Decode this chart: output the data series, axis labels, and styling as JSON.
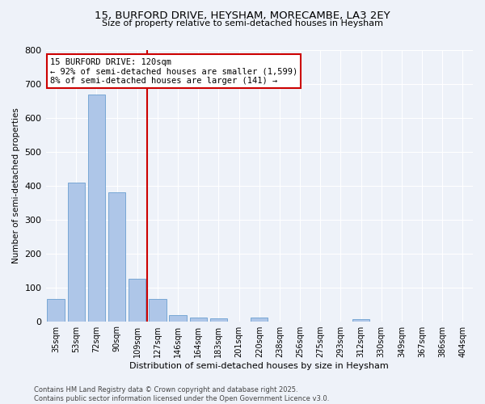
{
  "title_line1": "15, BURFORD DRIVE, HEYSHAM, MORECAMBE, LA3 2EY",
  "title_line2": "Size of property relative to semi-detached houses in Heysham",
  "xlabel": "Distribution of semi-detached houses by size in Heysham",
  "ylabel": "Number of semi-detached properties",
  "categories": [
    "35sqm",
    "53sqm",
    "72sqm",
    "90sqm",
    "109sqm",
    "127sqm",
    "146sqm",
    "164sqm",
    "183sqm",
    "201sqm",
    "220sqm",
    "238sqm",
    "256sqm",
    "275sqm",
    "293sqm",
    "312sqm",
    "330sqm",
    "349sqm",
    "367sqm",
    "386sqm",
    "404sqm"
  ],
  "values": [
    65,
    408,
    667,
    380,
    125,
    65,
    18,
    12,
    8,
    0,
    10,
    0,
    0,
    0,
    0,
    5,
    0,
    0,
    0,
    0,
    0
  ],
  "bar_color": "#aec6e8",
  "bar_edge_color": "#6a9fd0",
  "vline_color": "#cc0000",
  "vline_x": 4.5,
  "ylim": [
    0,
    800
  ],
  "yticks": [
    0,
    100,
    200,
    300,
    400,
    500,
    600,
    700,
    800
  ],
  "annotation_title": "15 BURFORD DRIVE: 120sqm",
  "annotation_line1": "← 92% of semi-detached houses are smaller (1,599)",
  "annotation_line2": "8% of semi-detached houses are larger (141) →",
  "annotation_box_color": "#cc0000",
  "footer_line1": "Contains HM Land Registry data © Crown copyright and database right 2025.",
  "footer_line2": "Contains public sector information licensed under the Open Government Licence v3.0.",
  "bg_color": "#eef2f9",
  "grid_color": "#ffffff"
}
